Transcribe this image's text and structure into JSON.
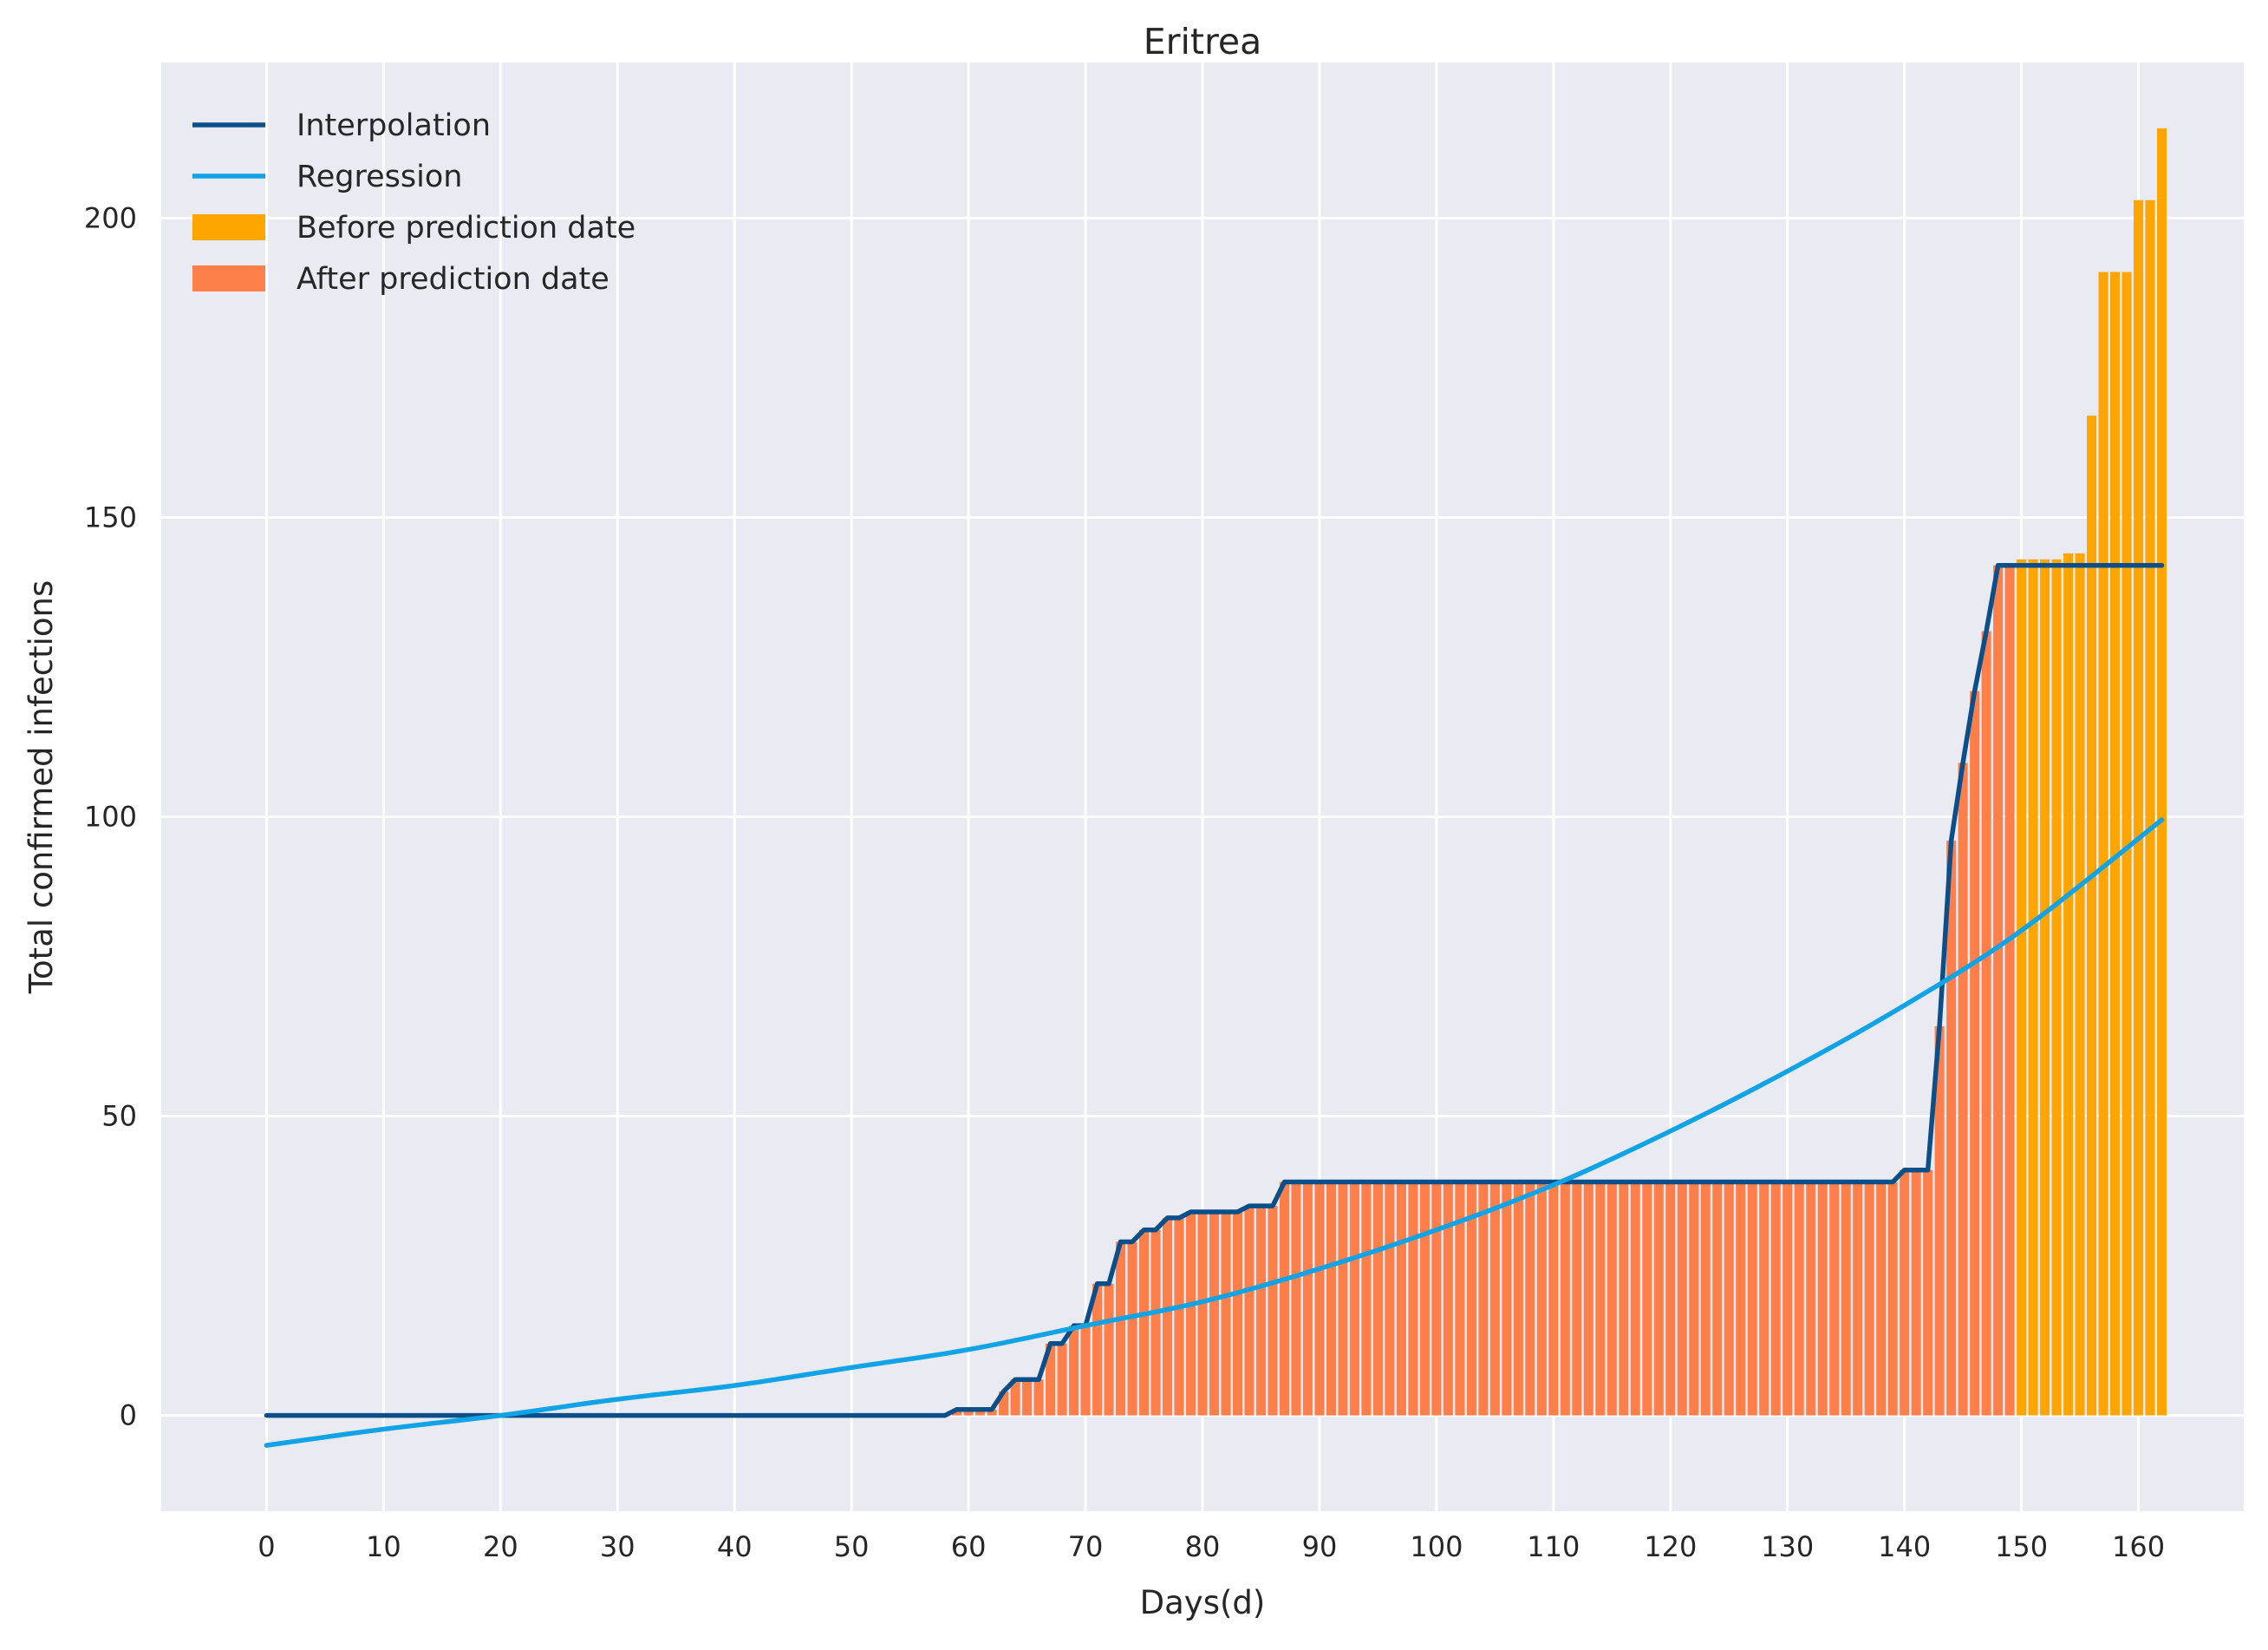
{
  "chart_data": {
    "type": "bar",
    "title": "Eritrea",
    "xlabel": "Days(d)",
    "ylabel": "Total confirmed infections",
    "xlim": [
      -9,
      169
    ],
    "ylim": [
      -16,
      226
    ],
    "x_ticks": [
      0,
      10,
      20,
      30,
      40,
      50,
      60,
      70,
      80,
      90,
      100,
      110,
      120,
      130,
      140,
      150,
      160
    ],
    "y_ticks": [
      0,
      50,
      100,
      150,
      200
    ],
    "grid": true,
    "legend_position": "top-left",
    "colors": {
      "interpolation": "#0b4f8a",
      "regression": "#10a3e6",
      "before_prediction": "#ffa500",
      "after_prediction": "#ff7f4a",
      "plot_background": "#eaeaf2",
      "grid": "#ffffff"
    },
    "legend": [
      {
        "label": "Interpolation",
        "kind": "line",
        "color": "#0b4f8a"
      },
      {
        "label": "Regression",
        "kind": "line",
        "color": "#10a3e6"
      },
      {
        "label": "Before prediction date",
        "kind": "bar",
        "color": "#ffa500"
      },
      {
        "label": "After prediction date",
        "kind": "bar",
        "color": "#ff7f4a"
      }
    ],
    "bars_after_prediction_date": [
      {
        "x": 59,
        "y": 1
      },
      {
        "x": 60,
        "y": 1
      },
      {
        "x": 61,
        "y": 1
      },
      {
        "x": 62,
        "y": 1
      },
      {
        "x": 63,
        "y": 4
      },
      {
        "x": 64,
        "y": 6
      },
      {
        "x": 65,
        "y": 6
      },
      {
        "x": 66,
        "y": 6
      },
      {
        "x": 67,
        "y": 12
      },
      {
        "x": 68,
        "y": 12
      },
      {
        "x": 69,
        "y": 15
      },
      {
        "x": 70,
        "y": 15
      },
      {
        "x": 71,
        "y": 22
      },
      {
        "x": 72,
        "y": 22
      },
      {
        "x": 73,
        "y": 29
      },
      {
        "x": 74,
        "y": 29
      },
      {
        "x": 75,
        "y": 31
      },
      {
        "x": 76,
        "y": 31
      },
      {
        "x": 77,
        "y": 33
      },
      {
        "x": 78,
        "y": 33
      },
      {
        "x": 79,
        "y": 34
      },
      {
        "x": 80,
        "y": 34
      },
      {
        "x": 81,
        "y": 34
      },
      {
        "x": 82,
        "y": 34
      },
      {
        "x": 83,
        "y": 34
      },
      {
        "x": 84,
        "y": 35
      },
      {
        "x": 85,
        "y": 35
      },
      {
        "x": 86,
        "y": 35
      },
      {
        "x": 87,
        "y": 39
      },
      {
        "x": 88,
        "y": 39
      },
      {
        "x": 89,
        "y": 39
      },
      {
        "x": 90,
        "y": 39
      },
      {
        "x": 91,
        "y": 39
      },
      {
        "x": 92,
        "y": 39
      },
      {
        "x": 93,
        "y": 39
      },
      {
        "x": 94,
        "y": 39
      },
      {
        "x": 95,
        "y": 39
      },
      {
        "x": 96,
        "y": 39
      },
      {
        "x": 97,
        "y": 39
      },
      {
        "x": 98,
        "y": 39
      },
      {
        "x": 99,
        "y": 39
      },
      {
        "x": 100,
        "y": 39
      },
      {
        "x": 101,
        "y": 39
      },
      {
        "x": 102,
        "y": 39
      },
      {
        "x": 103,
        "y": 39
      },
      {
        "x": 104,
        "y": 39
      },
      {
        "x": 105,
        "y": 39
      },
      {
        "x": 106,
        "y": 39
      },
      {
        "x": 107,
        "y": 39
      },
      {
        "x": 108,
        "y": 39
      },
      {
        "x": 109,
        "y": 39
      },
      {
        "x": 110,
        "y": 39
      },
      {
        "x": 111,
        "y": 39
      },
      {
        "x": 112,
        "y": 39
      },
      {
        "x": 113,
        "y": 39
      },
      {
        "x": 114,
        "y": 39
      },
      {
        "x": 115,
        "y": 39
      },
      {
        "x": 116,
        "y": 39
      },
      {
        "x": 117,
        "y": 39
      },
      {
        "x": 118,
        "y": 39
      },
      {
        "x": 119,
        "y": 39
      },
      {
        "x": 120,
        "y": 39
      },
      {
        "x": 121,
        "y": 39
      },
      {
        "x": 122,
        "y": 39
      },
      {
        "x": 123,
        "y": 39
      },
      {
        "x": 124,
        "y": 39
      },
      {
        "x": 125,
        "y": 39
      },
      {
        "x": 126,
        "y": 39
      },
      {
        "x": 127,
        "y": 39
      },
      {
        "x": 128,
        "y": 39
      },
      {
        "x": 129,
        "y": 39
      },
      {
        "x": 130,
        "y": 39
      },
      {
        "x": 131,
        "y": 39
      },
      {
        "x": 132,
        "y": 39
      },
      {
        "x": 133,
        "y": 39
      },
      {
        "x": 134,
        "y": 39
      },
      {
        "x": 135,
        "y": 39
      },
      {
        "x": 136,
        "y": 39
      },
      {
        "x": 137,
        "y": 39
      },
      {
        "x": 138,
        "y": 39
      },
      {
        "x": 139,
        "y": 39
      },
      {
        "x": 140,
        "y": 41
      },
      {
        "x": 141,
        "y": 41
      },
      {
        "x": 142,
        "y": 41
      },
      {
        "x": 143,
        "y": 65
      },
      {
        "x": 144,
        "y": 96
      },
      {
        "x": 145,
        "y": 109
      },
      {
        "x": 146,
        "y": 121
      },
      {
        "x": 147,
        "y": 131
      },
      {
        "x": 148,
        "y": 142
      },
      {
        "x": 149,
        "y": 142
      }
    ],
    "bars_before_prediction_date": [
      {
        "x": 150,
        "y": 143
      },
      {
        "x": 151,
        "y": 143
      },
      {
        "x": 152,
        "y": 143
      },
      {
        "x": 153,
        "y": 143
      },
      {
        "x": 154,
        "y": 144
      },
      {
        "x": 155,
        "y": 144
      },
      {
        "x": 156,
        "y": 167
      },
      {
        "x": 157,
        "y": 191
      },
      {
        "x": 158,
        "y": 191
      },
      {
        "x": 159,
        "y": 191
      },
      {
        "x": 160,
        "y": 203
      },
      {
        "x": 161,
        "y": 203
      },
      {
        "x": 162,
        "y": 215
      }
    ],
    "series": [
      {
        "name": "Interpolation",
        "points": [
          [
            0,
            0
          ],
          [
            58,
            0
          ],
          [
            59,
            1
          ],
          [
            62,
            1
          ],
          [
            63,
            4
          ],
          [
            64,
            6
          ],
          [
            66,
            6
          ],
          [
            67,
            12
          ],
          [
            68,
            12
          ],
          [
            69,
            15
          ],
          [
            70,
            15
          ],
          [
            71,
            22
          ],
          [
            72,
            22
          ],
          [
            73,
            29
          ],
          [
            74,
            29
          ],
          [
            75,
            31
          ],
          [
            76,
            31
          ],
          [
            77,
            33
          ],
          [
            78,
            33
          ],
          [
            79,
            34
          ],
          [
            83,
            34
          ],
          [
            84,
            35
          ],
          [
            86,
            35
          ],
          [
            87,
            39
          ],
          [
            139,
            39
          ],
          [
            140,
            41
          ],
          [
            142,
            41
          ],
          [
            143,
            65
          ],
          [
            144,
            96
          ],
          [
            145,
            109
          ],
          [
            146,
            121
          ],
          [
            147,
            131
          ],
          [
            148,
            142
          ],
          [
            162,
            142
          ]
        ]
      },
      {
        "name": "Regression",
        "points": [
          [
            0,
            -5
          ],
          [
            10,
            -2.3
          ],
          [
            20,
            0
          ],
          [
            30,
            2.7
          ],
          [
            40,
            5
          ],
          [
            50,
            8
          ],
          [
            60,
            11
          ],
          [
            70,
            15
          ],
          [
            80,
            19
          ],
          [
            90,
            24.5
          ],
          [
            100,
            31
          ],
          [
            110,
            38.5
          ],
          [
            120,
            47.5
          ],
          [
            130,
            57.5
          ],
          [
            140,
            68.5
          ],
          [
            150,
            81
          ],
          [
            162,
            99.5
          ]
        ]
      }
    ]
  }
}
